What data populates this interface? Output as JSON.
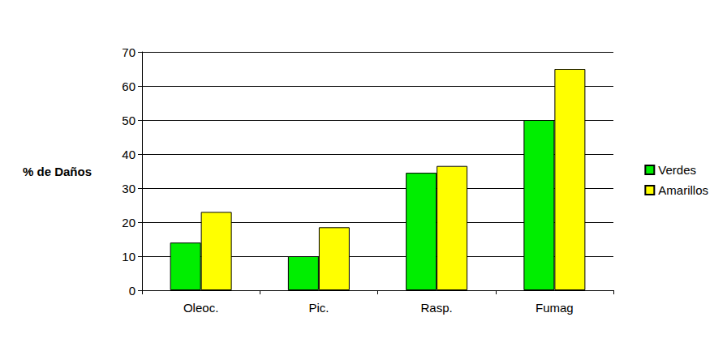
{
  "chart_data": {
    "type": "bar",
    "y_label": "% de Daños",
    "categories": [
      "Oleoc.",
      "Pic.",
      "Rasp.",
      "Fumag"
    ],
    "series": [
      {
        "name": "Verdes",
        "color": "#00ee00",
        "values": [
          14,
          10,
          34.5,
          50
        ]
      },
      {
        "name": "Amarillos",
        "color": "#ffff00",
        "values": [
          23,
          18.5,
          36.5,
          65
        ]
      }
    ],
    "ylim": [
      0,
      70
    ],
    "yticks": [
      0,
      10,
      20,
      30,
      40,
      50,
      60,
      70
    ],
    "grid": true,
    "legend": "right"
  }
}
